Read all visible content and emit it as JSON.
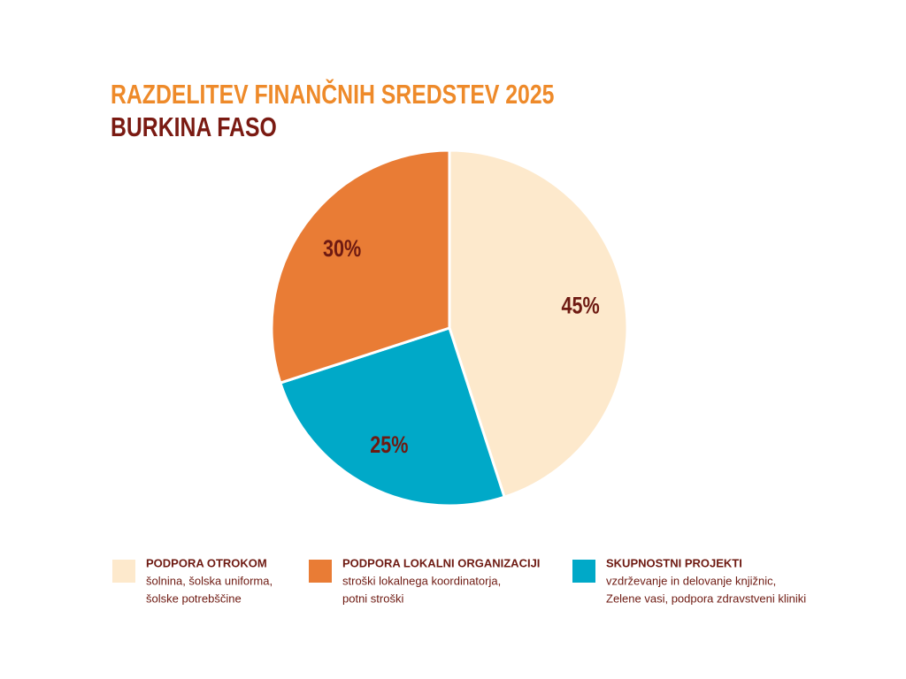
{
  "chart_data": {
    "type": "pie",
    "title": "RAZDELITEV FINANČNIH SREDSTEV 2025",
    "subtitle": "BURKINA FASO",
    "series": [
      {
        "name": "PODPORA OTROKOM",
        "color": "#fde9cc",
        "value": 45,
        "value_label": "45%",
        "description": [
          "šolnina, šolska uniforma,",
          "šolske potrebščine"
        ]
      },
      {
        "name": "SKUPNOSTNI PROJEKTI",
        "color": "#00a9c8",
        "value": 25,
        "value_label": "25%",
        "description": [
          "vzdrževanje in delovanje knjižnic,",
          "Zelene vasi, podpora zdravstveni kliniki"
        ]
      },
      {
        "name": "PODPORA LOKALNI ORGANIZACIJI",
        "color": "#e97c35",
        "value": 30,
        "value_label": "30%",
        "description": [
          "stroški lokalnega koordinatorja,",
          "potni stroški"
        ]
      }
    ],
    "legend_order": [
      0,
      2,
      1
    ]
  }
}
